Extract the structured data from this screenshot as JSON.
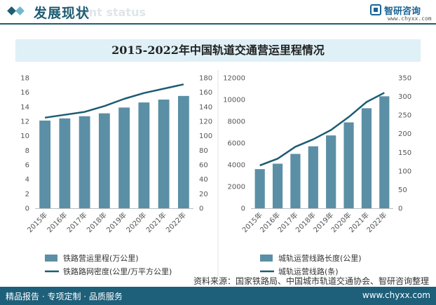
{
  "header": {
    "title": "发展现状",
    "watermark": "ent status",
    "brand_name": "智研咨询",
    "brand_url": "www.chyxx.com"
  },
  "title": "2015-2022年中国轨道交通营运里程情况",
  "colors": {
    "bar": "#5b8fa5",
    "line": "#1c5c73",
    "header_bar": "#1f5d73",
    "accent_diamond": "#6fb8cf"
  },
  "chart_data": [
    {
      "type": "bar",
      "categories": [
        "2015年",
        "2016年",
        "2017年",
        "2018年",
        "2019年",
        "2020年",
        "2021年",
        "2022年"
      ],
      "series": [
        {
          "name": "铁路营运里程(万公里)",
          "type": "bar",
          "axis": "left",
          "values": [
            12.1,
            12.4,
            12.7,
            13.1,
            13.9,
            14.6,
            15.0,
            15.5
          ]
        },
        {
          "name": "铁路路网密度(公里/万平方公里)",
          "type": "line",
          "axis": "right",
          "values": [
            125,
            129,
            133,
            141,
            151,
            159,
            165,
            171
          ]
        }
      ],
      "ylim": [
        0,
        18
      ],
      "yticks": [
        0,
        2,
        4,
        6,
        8,
        10,
        12,
        14,
        16,
        18
      ],
      "y2lim": [
        0,
        180
      ],
      "y2ticks": [
        0,
        20,
        40,
        60,
        80,
        100,
        120,
        140,
        160,
        180
      ],
      "legend_position": "bottom"
    },
    {
      "type": "bar",
      "categories": [
        "2015年",
        "2016年",
        "2017年",
        "2018年",
        "2019年",
        "2020年",
        "2021年",
        "2022年"
      ],
      "series": [
        {
          "name": "城轨运营线路长度(公里)",
          "type": "bar",
          "axis": "left",
          "values": [
            3600,
            4100,
            5000,
            5700,
            6700,
            7900,
            9200,
            10300
          ]
        },
        {
          "name": "城轨运营线路(条)",
          "type": "line",
          "axis": "right",
          "values": [
            115,
            133,
            165,
            185,
            210,
            245,
            285,
            310
          ]
        }
      ],
      "ylim": [
        0,
        12000
      ],
      "yticks": [
        0,
        2000,
        4000,
        6000,
        8000,
        10000,
        12000
      ],
      "y2lim": [
        0,
        350
      ],
      "y2ticks": [
        0,
        50,
        100,
        150,
        200,
        250,
        300,
        350
      ],
      "legend_position": "bottom"
    }
  ],
  "source": "资料来源：国家铁路局、中国城市轨道交通协会、智研咨询整理",
  "footer": {
    "left": "精品报告 · 专项定制 · 品质服务",
    "right": "www.chyxx.com"
  }
}
